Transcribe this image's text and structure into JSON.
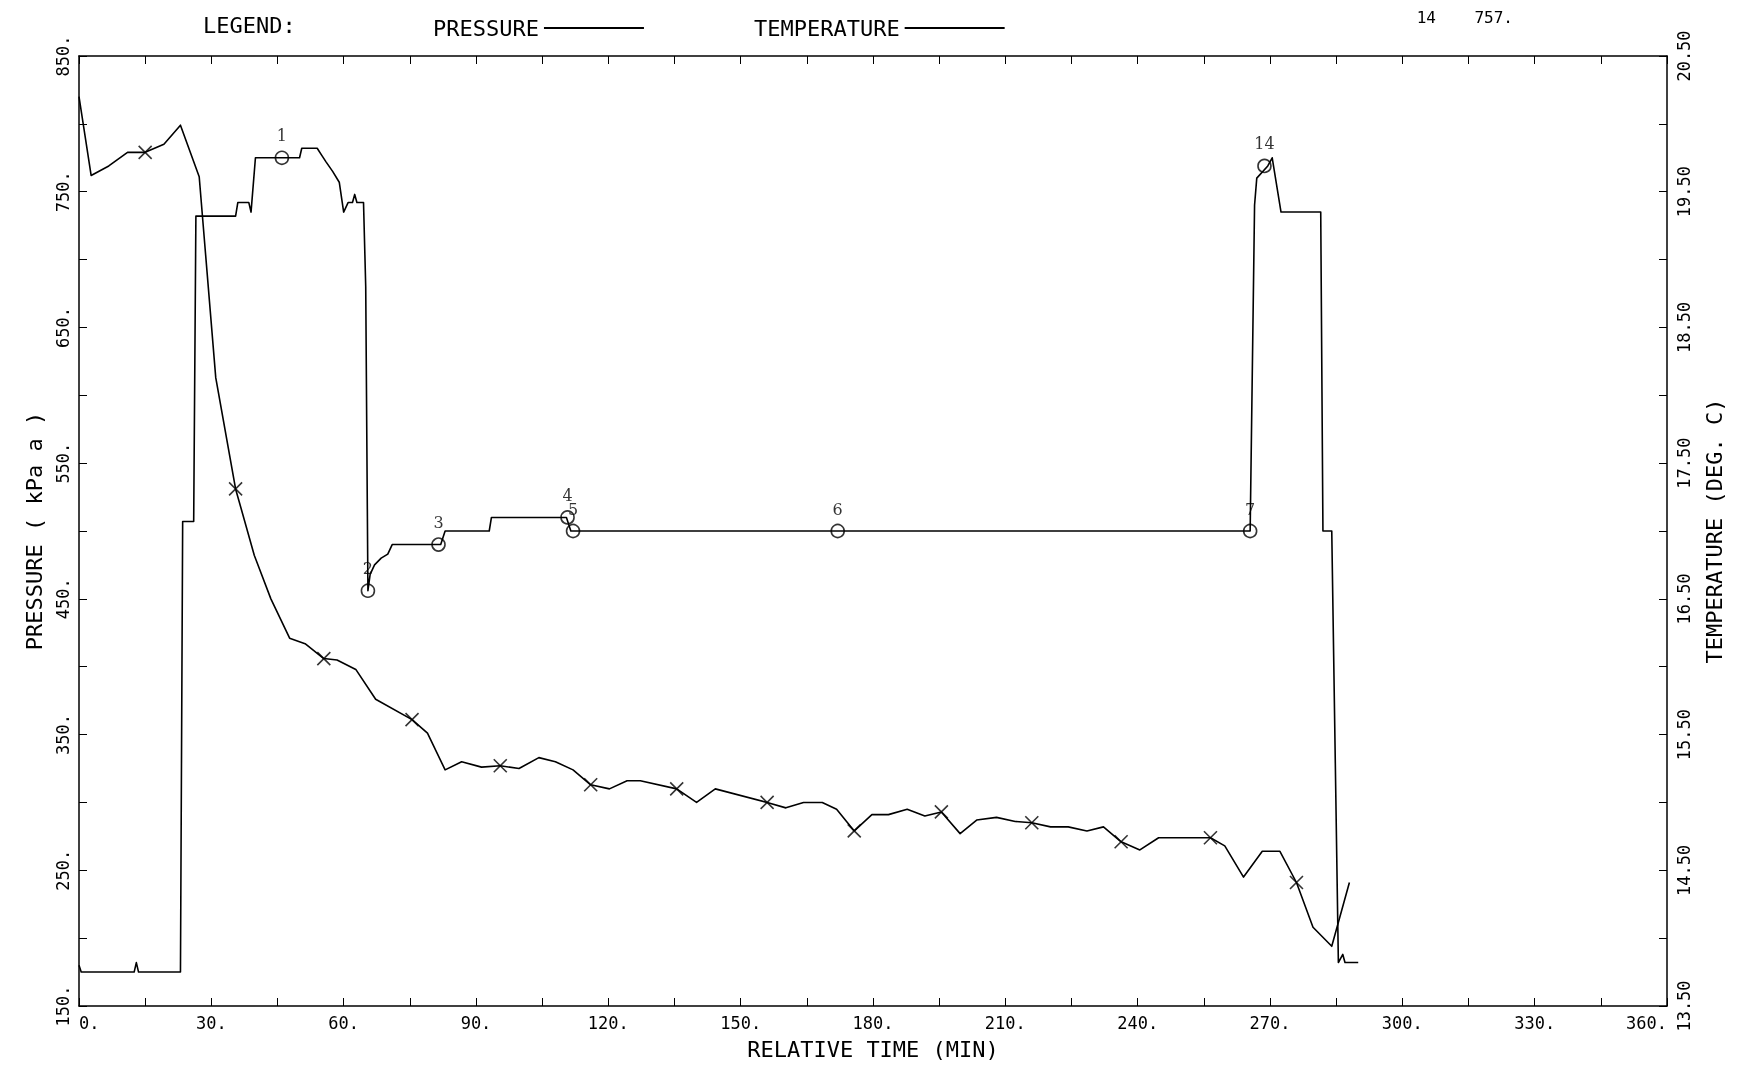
{
  "chart_data": {
    "type": "line",
    "xlabel": "RELATIVE TIME (MIN)",
    "ylabel": "PRESSURE ( kPa a )",
    "y2label": "TEMPERATURE (DEG. C)",
    "legend_title": "LEGEND:",
    "legend": "top",
    "grid": false,
    "annotations": [
      "14    757.",
      {
        "text": "1",
        "x": 46,
        "y": 775
      },
      {
        "text": "2",
        "x": 65.5,
        "y": 456
      },
      {
        "text": "3",
        "x": 81.5,
        "y": 490
      },
      {
        "text": "4",
        "x": 110.75,
        "y": 510
      },
      {
        "text": "5",
        "x": 112,
        "y": 500
      },
      {
        "text": "6",
        "x": 172,
        "y": 500
      },
      {
        "text": "7",
        "x": 265.5,
        "y": 500
      },
      {
        "text": "14",
        "x": 268.75,
        "y": 769
      }
    ],
    "xlim": [
      0,
      360
    ],
    "ylim": [
      150,
      850
    ],
    "y2lim": [
      13.5,
      20.5
    ],
    "xticks": [
      {
        "value": 0,
        "label": "0."
      },
      {
        "value": 15,
        "label": null
      },
      {
        "value": 30,
        "label": "30."
      },
      {
        "value": 45,
        "label": null
      },
      {
        "value": 60,
        "label": "60."
      },
      {
        "value": 75,
        "label": null
      },
      {
        "value": 90,
        "label": "90."
      },
      {
        "value": 105,
        "label": null
      },
      {
        "value": 120,
        "label": "120."
      },
      {
        "value": 135,
        "label": null
      },
      {
        "value": 150,
        "label": "150."
      },
      {
        "value": 165,
        "label": null
      },
      {
        "value": 180,
        "label": "180."
      },
      {
        "value": 195,
        "label": null
      },
      {
        "value": 210,
        "label": "210."
      },
      {
        "value": 225,
        "label": null
      },
      {
        "value": 240,
        "label": "240."
      },
      {
        "value": 255,
        "label": null
      },
      {
        "value": 270,
        "label": "270."
      },
      {
        "value": 285,
        "label": null
      },
      {
        "value": 300,
        "label": "300."
      },
      {
        "value": 315,
        "label": null
      },
      {
        "value": 330,
        "label": "330."
      },
      {
        "value": 345,
        "label": null
      },
      {
        "value": 360,
        "label": "360."
      }
    ],
    "yticks": [
      {
        "value": 150,
        "label": "150."
      },
      {
        "value": 200,
        "label": null
      },
      {
        "value": 250,
        "label": "250."
      },
      {
        "value": 300,
        "label": null
      },
      {
        "value": 350,
        "label": "350."
      },
      {
        "value": 400,
        "label": null
      },
      {
        "value": 450,
        "label": "450."
      },
      {
        "value": 500,
        "label": null
      },
      {
        "value": 550,
        "label": "550."
      },
      {
        "value": 600,
        "label": null
      },
      {
        "value": 650,
        "label": "650."
      },
      {
        "value": 700,
        "label": null
      },
      {
        "value": 750,
        "label": "750."
      },
      {
        "value": 800,
        "label": null
      },
      {
        "value": 850,
        "label": "850."
      }
    ],
    "y2ticks": [
      {
        "value": 13.5,
        "label": "13.50"
      },
      {
        "value": 14,
        "label": null
      },
      {
        "value": 14.5,
        "label": "14.50"
      },
      {
        "value": 15,
        "label": null
      },
      {
        "value": 15.5,
        "label": "15.50"
      },
      {
        "value": 16,
        "label": null
      },
      {
        "value": 16.5,
        "label": "16.50"
      },
      {
        "value": 17,
        "label": null
      },
      {
        "value": 17.5,
        "label": "17.50"
      },
      {
        "value": 18,
        "label": null
      },
      {
        "value": 18.5,
        "label": "18.50"
      },
      {
        "value": 19,
        "label": null
      },
      {
        "value": 19.5,
        "label": "19.50"
      },
      {
        "value": 20,
        "label": null
      },
      {
        "value": 20.5,
        "label": "20.50"
      }
    ],
    "series": [
      {
        "name": "PRESSURE",
        "color": "#000000",
        "marker": "none",
        "x": [
          0,
          0.5,
          12.5,
          13,
          13.5,
          23,
          23.5,
          26,
          26.5,
          35.5,
          36,
          38.5,
          39,
          40,
          50,
          50.5,
          54,
          55,
          56,
          57.5,
          59,
          60,
          61,
          62,
          62.5,
          63,
          64.5,
          65,
          65.5,
          66,
          67,
          68.5,
          70,
          71,
          82,
          83,
          93,
          93.5,
          110.5,
          111.5,
          265.5,
          266.5,
          267,
          269.5,
          270.5,
          272.5,
          281.5,
          282,
          284,
          285.5,
          286.5,
          287,
          290
        ],
        "values": [
          180,
          175,
          175,
          182,
          175,
          175,
          507,
          507,
          732,
          732,
          742,
          742,
          735,
          775,
          775,
          782,
          782,
          777,
          772,
          765,
          757,
          735,
          742,
          742,
          748,
          742,
          742,
          680,
          456,
          468,
          475,
          480,
          483,
          490,
          490,
          500,
          500,
          510,
          510,
          500,
          500,
          740,
          760,
          769,
          775,
          735,
          735,
          500,
          500,
          182,
          188,
          182,
          182
        ]
      },
      {
        "type": "scatter",
        "color": "#000000",
        "marker": "circle",
        "x": [
          46,
          65.5,
          81.5,
          110.75,
          112,
          172,
          265.5,
          268.75
        ],
        "values": [
          775,
          456,
          490,
          510,
          500,
          500,
          500,
          769
        ]
      },
      {
        "name": "TEMPERATURE",
        "type": "line",
        "axis": "y2",
        "color": "#000000",
        "marker": "none",
        "x": [
          0,
          2.75,
          6.75,
          11,
          15,
          19.25,
          23,
          27.25,
          31,
          35.5,
          39.75,
          43.5,
          47.75,
          51.25,
          55.5,
          58.5,
          62.75,
          67.25,
          75.5,
          79,
          83,
          86.75,
          91.25,
          95.5,
          99.75,
          104.25,
          108,
          112,
          116,
          120.25,
          124.25,
          127.25,
          135.5,
          140,
          144.25,
          156,
          160.25,
          164.25,
          168.5,
          171.75,
          175.75,
          179.75,
          183.5,
          187.75,
          191.75,
          195.5,
          199.75,
          203.5,
          208,
          212.25,
          216,
          220.25,
          224.25,
          228.5,
          232.25,
          236.25,
          240.5,
          244.75,
          256.5,
          259.75,
          264,
          268.25,
          272.25,
          276,
          279.75,
          284,
          288
        ],
        "values": [
          20.2,
          19.62,
          19.69,
          19.79,
          19.79,
          19.85,
          19.99,
          19.61,
          18.13,
          17.31,
          16.82,
          16.5,
          16.21,
          16.17,
          16.06,
          16.05,
          15.98,
          15.76,
          15.61,
          15.51,
          15.24,
          15.3,
          15.26,
          15.27,
          15.25,
          15.33,
          15.3,
          15.24,
          15.13,
          15.1,
          15.16,
          15.16,
          15.1,
          15,
          15.1,
          15,
          14.96,
          15,
          15,
          14.95,
          14.79,
          14.91,
          14.91,
          14.95,
          14.9,
          14.93,
          14.77,
          14.87,
          14.89,
          14.86,
          14.85,
          14.82,
          14.82,
          14.79,
          14.82,
          14.71,
          14.65,
          14.74,
          14.74,
          14.68,
          14.45,
          14.64,
          14.64,
          14.41,
          14.08,
          13.94,
          14.41
        ]
      },
      {
        "type": "scatter",
        "axis": "y2",
        "color": "#000000",
        "marker": "cross",
        "x": [
          15,
          35.5,
          55.5,
          75.5,
          95.5,
          116,
          135.5,
          156,
          175.75,
          195.5,
          216,
          236.25,
          256.5,
          276
        ],
        "values": [
          19.79,
          17.31,
          16.06,
          15.61,
          15.27,
          15.13,
          15.1,
          15,
          14.79,
          14.93,
          14.85,
          14.71,
          14.74,
          14.41
        ]
      }
    ]
  }
}
